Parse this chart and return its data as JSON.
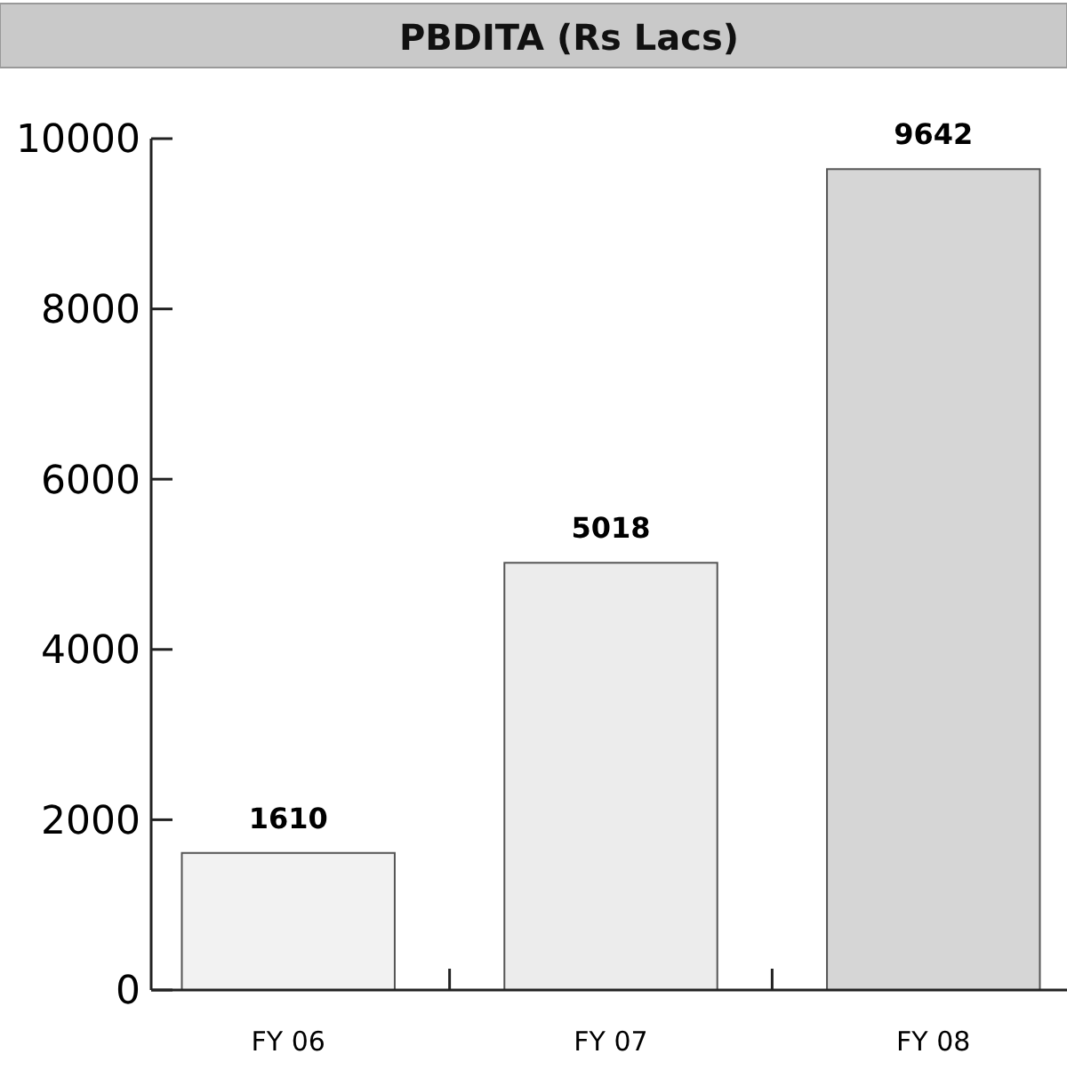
{
  "chart_data": {
    "type": "bar",
    "title": "PBDITA (Rs Lacs)",
    "categories": [
      "FY 06",
      "FY 07",
      "FY 08"
    ],
    "values": [
      1610,
      5018,
      9642
    ],
    "colors": [
      "#f2f2f2",
      "#ececec",
      "#d6d6d6"
    ],
    "ylim": [
      0,
      10000
    ],
    "yticks": [
      0,
      2000,
      4000,
      6000,
      8000,
      10000
    ],
    "data_labels": true
  }
}
